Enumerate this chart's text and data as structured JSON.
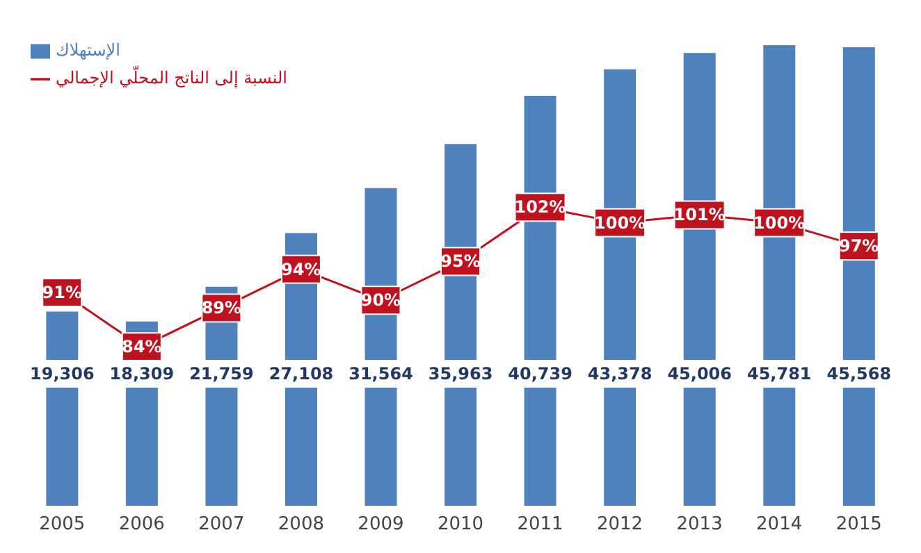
{
  "chart_data": {
    "type": "bar",
    "categories": [
      "2005",
      "2006",
      "2007",
      "2008",
      "2009",
      "2010",
      "2011",
      "2012",
      "2013",
      "2014",
      "2015"
    ],
    "series": [
      {
        "name": "الإستهلاك",
        "color": "#4f81bd",
        "values": [
          19306,
          18309,
          21759,
          27108,
          31564,
          35963,
          40739,
          43378,
          45006,
          45781,
          45568
        ],
        "value_labels": [
          "19,306",
          "18,309",
          "21,759",
          "27,108",
          "31,564",
          "35,963",
          "40,739",
          "43,378",
          "45,006",
          "45,781",
          "45,568"
        ]
      },
      {
        "name": "النسبة إلى الناتج المحلّي الإجمالي",
        "type": "line",
        "axis": "y2",
        "color": "#c0111f",
        "values": [
          91,
          84,
          89,
          94,
          90,
          95,
          102,
          100,
          101,
          100,
          97
        ],
        "value_labels": [
          "91%",
          "84%",
          "89%",
          "94%",
          "90%",
          "95%",
          "102%",
          "100%",
          "101%",
          "100%",
          "97%"
        ]
      }
    ],
    "tick_labels": "x",
    "legend": "top left",
    "marker": "square",
    "line_style": "solid"
  }
}
